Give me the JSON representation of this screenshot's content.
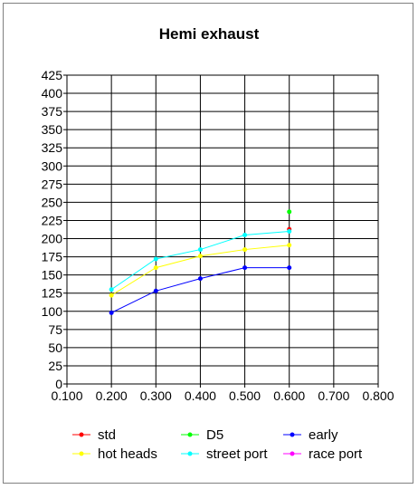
{
  "chart_data": {
    "type": "line",
    "title": "Hemi exhaust",
    "xlabel": "",
    "ylabel": "",
    "xlim": [
      0.1,
      0.8
    ],
    "ylim": [
      0,
      425
    ],
    "x_ticks": [
      "0.100",
      "0.200",
      "0.300",
      "0.400",
      "0.500",
      "0.600",
      "0.700",
      "0.800"
    ],
    "y_ticks": [
      "0",
      "25",
      "50",
      "75",
      "100",
      "125",
      "150",
      "175",
      "200",
      "225",
      "250",
      "275",
      "300",
      "325",
      "350",
      "375",
      "400",
      "425"
    ],
    "grid": true,
    "legend_position": "bottom",
    "series": [
      {
        "name": "std",
        "color": "#ff0000",
        "x": [
          0.6
        ],
        "y": [
          213
        ]
      },
      {
        "name": "D5",
        "color": "#00ff00",
        "x": [
          0.6
        ],
        "y": [
          237
        ]
      },
      {
        "name": "early",
        "color": "#0000ff",
        "x": [
          0.2,
          0.3,
          0.4,
          0.5,
          0.6
        ],
        "y": [
          98,
          128,
          145,
          160,
          160
        ]
      },
      {
        "name": "hot heads",
        "color": "#ffff00",
        "x": [
          0.2,
          0.3,
          0.4,
          0.5,
          0.6
        ],
        "y": [
          122,
          160,
          176,
          185,
          191
        ]
      },
      {
        "name": "street port",
        "color": "#00ffff",
        "x": [
          0.2,
          0.3,
          0.4,
          0.5,
          0.6
        ],
        "y": [
          130,
          172,
          185,
          205,
          210
        ]
      },
      {
        "name": "race port",
        "color": "#ff00ff",
        "x": [],
        "y": []
      }
    ]
  }
}
